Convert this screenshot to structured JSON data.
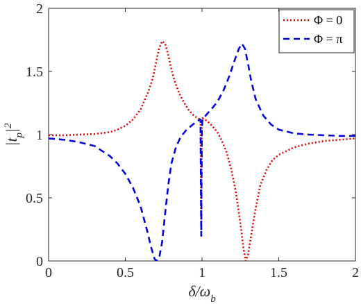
{
  "chart_data": {
    "type": "line",
    "title": "",
    "xlabel": "δ/ω_b",
    "ylabel": "|t_p|^2",
    "xlim": [
      0,
      2
    ],
    "ylim": [
      0,
      2
    ],
    "x_ticks": [
      "0",
      "0.5",
      "1",
      "1.5",
      "2"
    ],
    "y_ticks": [
      "0",
      "0.5",
      "1",
      "1.5",
      "2"
    ],
    "grid": false,
    "legend_position": "top-right",
    "series": [
      {
        "name": "Φ = 0",
        "color": "#e00000",
        "style": "dotted",
        "points": [
          [
            0.0,
            0.995
          ],
          [
            0.1,
            0.995
          ],
          [
            0.2,
            1.0
          ],
          [
            0.3,
            1.005
          ],
          [
            0.4,
            1.02
          ],
          [
            0.45,
            1.04
          ],
          [
            0.5,
            1.07
          ],
          [
            0.55,
            1.12
          ],
          [
            0.6,
            1.2
          ],
          [
            0.65,
            1.34
          ],
          [
            0.68,
            1.45
          ],
          [
            0.7,
            1.57
          ],
          [
            0.72,
            1.68
          ],
          [
            0.74,
            1.74
          ],
          [
            0.76,
            1.72
          ],
          [
            0.78,
            1.63
          ],
          [
            0.8,
            1.52
          ],
          [
            0.82,
            1.43
          ],
          [
            0.85,
            1.33
          ],
          [
            0.88,
            1.26
          ],
          [
            0.91,
            1.2
          ],
          [
            0.94,
            1.16
          ],
          [
            0.97,
            1.13
          ],
          [
            0.99,
            1.12
          ],
          [
            0.995,
            0.2
          ],
          [
            0.999,
            1.05
          ],
          [
            1.003,
            1.13
          ],
          [
            1.02,
            1.12
          ],
          [
            1.05,
            1.09
          ],
          [
            1.08,
            1.05
          ],
          [
            1.1,
            1.02
          ],
          [
            1.13,
            0.95
          ],
          [
            1.16,
            0.86
          ],
          [
            1.19,
            0.73
          ],
          [
            1.22,
            0.55
          ],
          [
            1.25,
            0.3
          ],
          [
            1.27,
            0.1
          ],
          [
            1.285,
            0.0
          ],
          [
            1.3,
            0.05
          ],
          [
            1.32,
            0.2
          ],
          [
            1.35,
            0.42
          ],
          [
            1.38,
            0.6
          ],
          [
            1.42,
            0.72
          ],
          [
            1.46,
            0.8
          ],
          [
            1.5,
            0.84
          ],
          [
            1.6,
            0.9
          ],
          [
            1.7,
            0.93
          ],
          [
            1.8,
            0.95
          ],
          [
            1.9,
            0.96
          ],
          [
            2.0,
            0.97
          ]
        ]
      },
      {
        "name": "Φ = π",
        "color": "#0000e0",
        "style": "dashed",
        "points": [
          [
            0.0,
            0.97
          ],
          [
            0.1,
            0.96
          ],
          [
            0.2,
            0.94
          ],
          [
            0.3,
            0.91
          ],
          [
            0.4,
            0.83
          ],
          [
            0.45,
            0.77
          ],
          [
            0.5,
            0.69
          ],
          [
            0.55,
            0.58
          ],
          [
            0.6,
            0.43
          ],
          [
            0.64,
            0.25
          ],
          [
            0.67,
            0.1
          ],
          [
            0.69,
            0.02
          ],
          [
            0.7,
            0.0
          ],
          [
            0.72,
            0.02
          ],
          [
            0.74,
            0.15
          ],
          [
            0.76,
            0.38
          ],
          [
            0.78,
            0.6
          ],
          [
            0.8,
            0.77
          ],
          [
            0.83,
            0.9
          ],
          [
            0.86,
            0.98
          ],
          [
            0.9,
            1.04
          ],
          [
            0.94,
            1.08
          ],
          [
            0.97,
            1.11
          ],
          [
            0.99,
            1.12
          ],
          [
            0.995,
            0.2
          ],
          [
            0.999,
            1.05
          ],
          [
            1.003,
            1.12
          ],
          [
            1.03,
            1.16
          ],
          [
            1.06,
            1.2
          ],
          [
            1.1,
            1.26
          ],
          [
            1.14,
            1.35
          ],
          [
            1.18,
            1.47
          ],
          [
            1.21,
            1.58
          ],
          [
            1.24,
            1.68
          ],
          [
            1.26,
            1.72
          ],
          [
            1.28,
            1.68
          ],
          [
            1.3,
            1.56
          ],
          [
            1.32,
            1.43
          ],
          [
            1.35,
            1.28
          ],
          [
            1.4,
            1.15
          ],
          [
            1.45,
            1.08
          ],
          [
            1.5,
            1.04
          ],
          [
            1.6,
            1.01
          ],
          [
            1.7,
            1.0
          ],
          [
            1.8,
            0.995
          ],
          [
            1.9,
            0.99
          ],
          [
            2.0,
            0.99
          ]
        ]
      }
    ]
  }
}
